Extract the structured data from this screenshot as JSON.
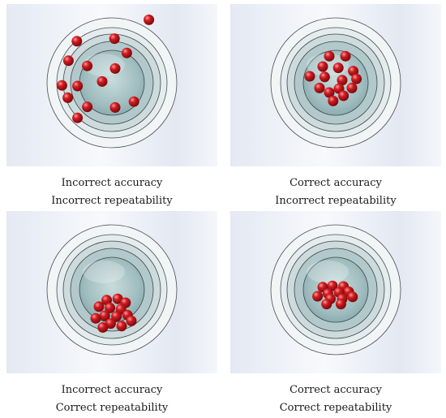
{
  "panels": [
    {
      "accuracy": "Incorrect accuracy",
      "repeatability": "Incorrect repeatability",
      "shots": [
        [
          -0.54,
          -0.64
        ],
        [
          0.04,
          -0.68
        ],
        [
          0.23,
          -0.46
        ],
        [
          -0.67,
          -0.34
        ],
        [
          -0.38,
          -0.26
        ],
        [
          0.05,
          -0.22
        ],
        [
          -0.15,
          -0.02
        ],
        [
          -0.77,
          0.04
        ],
        [
          -0.53,
          0.05
        ],
        [
          -0.68,
          0.23
        ],
        [
          -0.38,
          0.37
        ],
        [
          0.05,
          0.38
        ],
        [
          0.34,
          0.29
        ],
        [
          -0.53,
          0.54
        ],
        [
          0.57,
          -0.97
        ]
      ]
    },
    {
      "accuracy": "Correct accuracy",
      "repeatability": "Incorrect repeatability",
      "shots": [
        [
          -0.1,
          -0.41
        ],
        [
          0.15,
          -0.41
        ],
        [
          -0.2,
          -0.25
        ],
        [
          0.04,
          -0.23
        ],
        [
          0.27,
          -0.18
        ],
        [
          -0.4,
          -0.1
        ],
        [
          -0.17,
          -0.09
        ],
        [
          0.1,
          -0.04
        ],
        [
          0.32,
          -0.06
        ],
        [
          -0.25,
          0.08
        ],
        [
          0.05,
          0.09
        ],
        [
          0.25,
          0.08
        ],
        [
          -0.1,
          0.15
        ],
        [
          0.12,
          0.2
        ],
        [
          -0.04,
          0.28
        ]
      ]
    },
    {
      "accuracy": "Incorrect accuracy",
      "repeatability": "Correct repeatability",
      "shots": [
        [
          -0.08,
          0.16
        ],
        [
          0.09,
          0.14
        ],
        [
          0.21,
          0.2
        ],
        [
          -0.2,
          0.26
        ],
        [
          -0.03,
          0.28
        ],
        [
          0.14,
          0.3
        ],
        [
          -0.11,
          0.4
        ],
        [
          0.07,
          0.41
        ],
        [
          0.24,
          0.39
        ],
        [
          -0.25,
          0.44
        ],
        [
          -0.02,
          0.52
        ],
        [
          0.15,
          0.56
        ],
        [
          -0.14,
          0.58
        ],
        [
          0.3,
          0.48
        ]
      ]
    },
    {
      "accuracy": "Correct accuracy",
      "repeatability": "Correct repeatability",
      "shots": [
        [
          -0.2,
          -0.04
        ],
        [
          -0.05,
          -0.06
        ],
        [
          0.12,
          -0.05
        ],
        [
          -0.12,
          0.06
        ],
        [
          0.05,
          0.04
        ],
        [
          0.2,
          0.03
        ],
        [
          -0.28,
          0.1
        ],
        [
          -0.08,
          0.14
        ],
        [
          0.1,
          0.14
        ],
        [
          0.26,
          0.11
        ],
        [
          -0.14,
          0.22
        ],
        [
          0.08,
          0.22
        ]
      ]
    }
  ]
}
